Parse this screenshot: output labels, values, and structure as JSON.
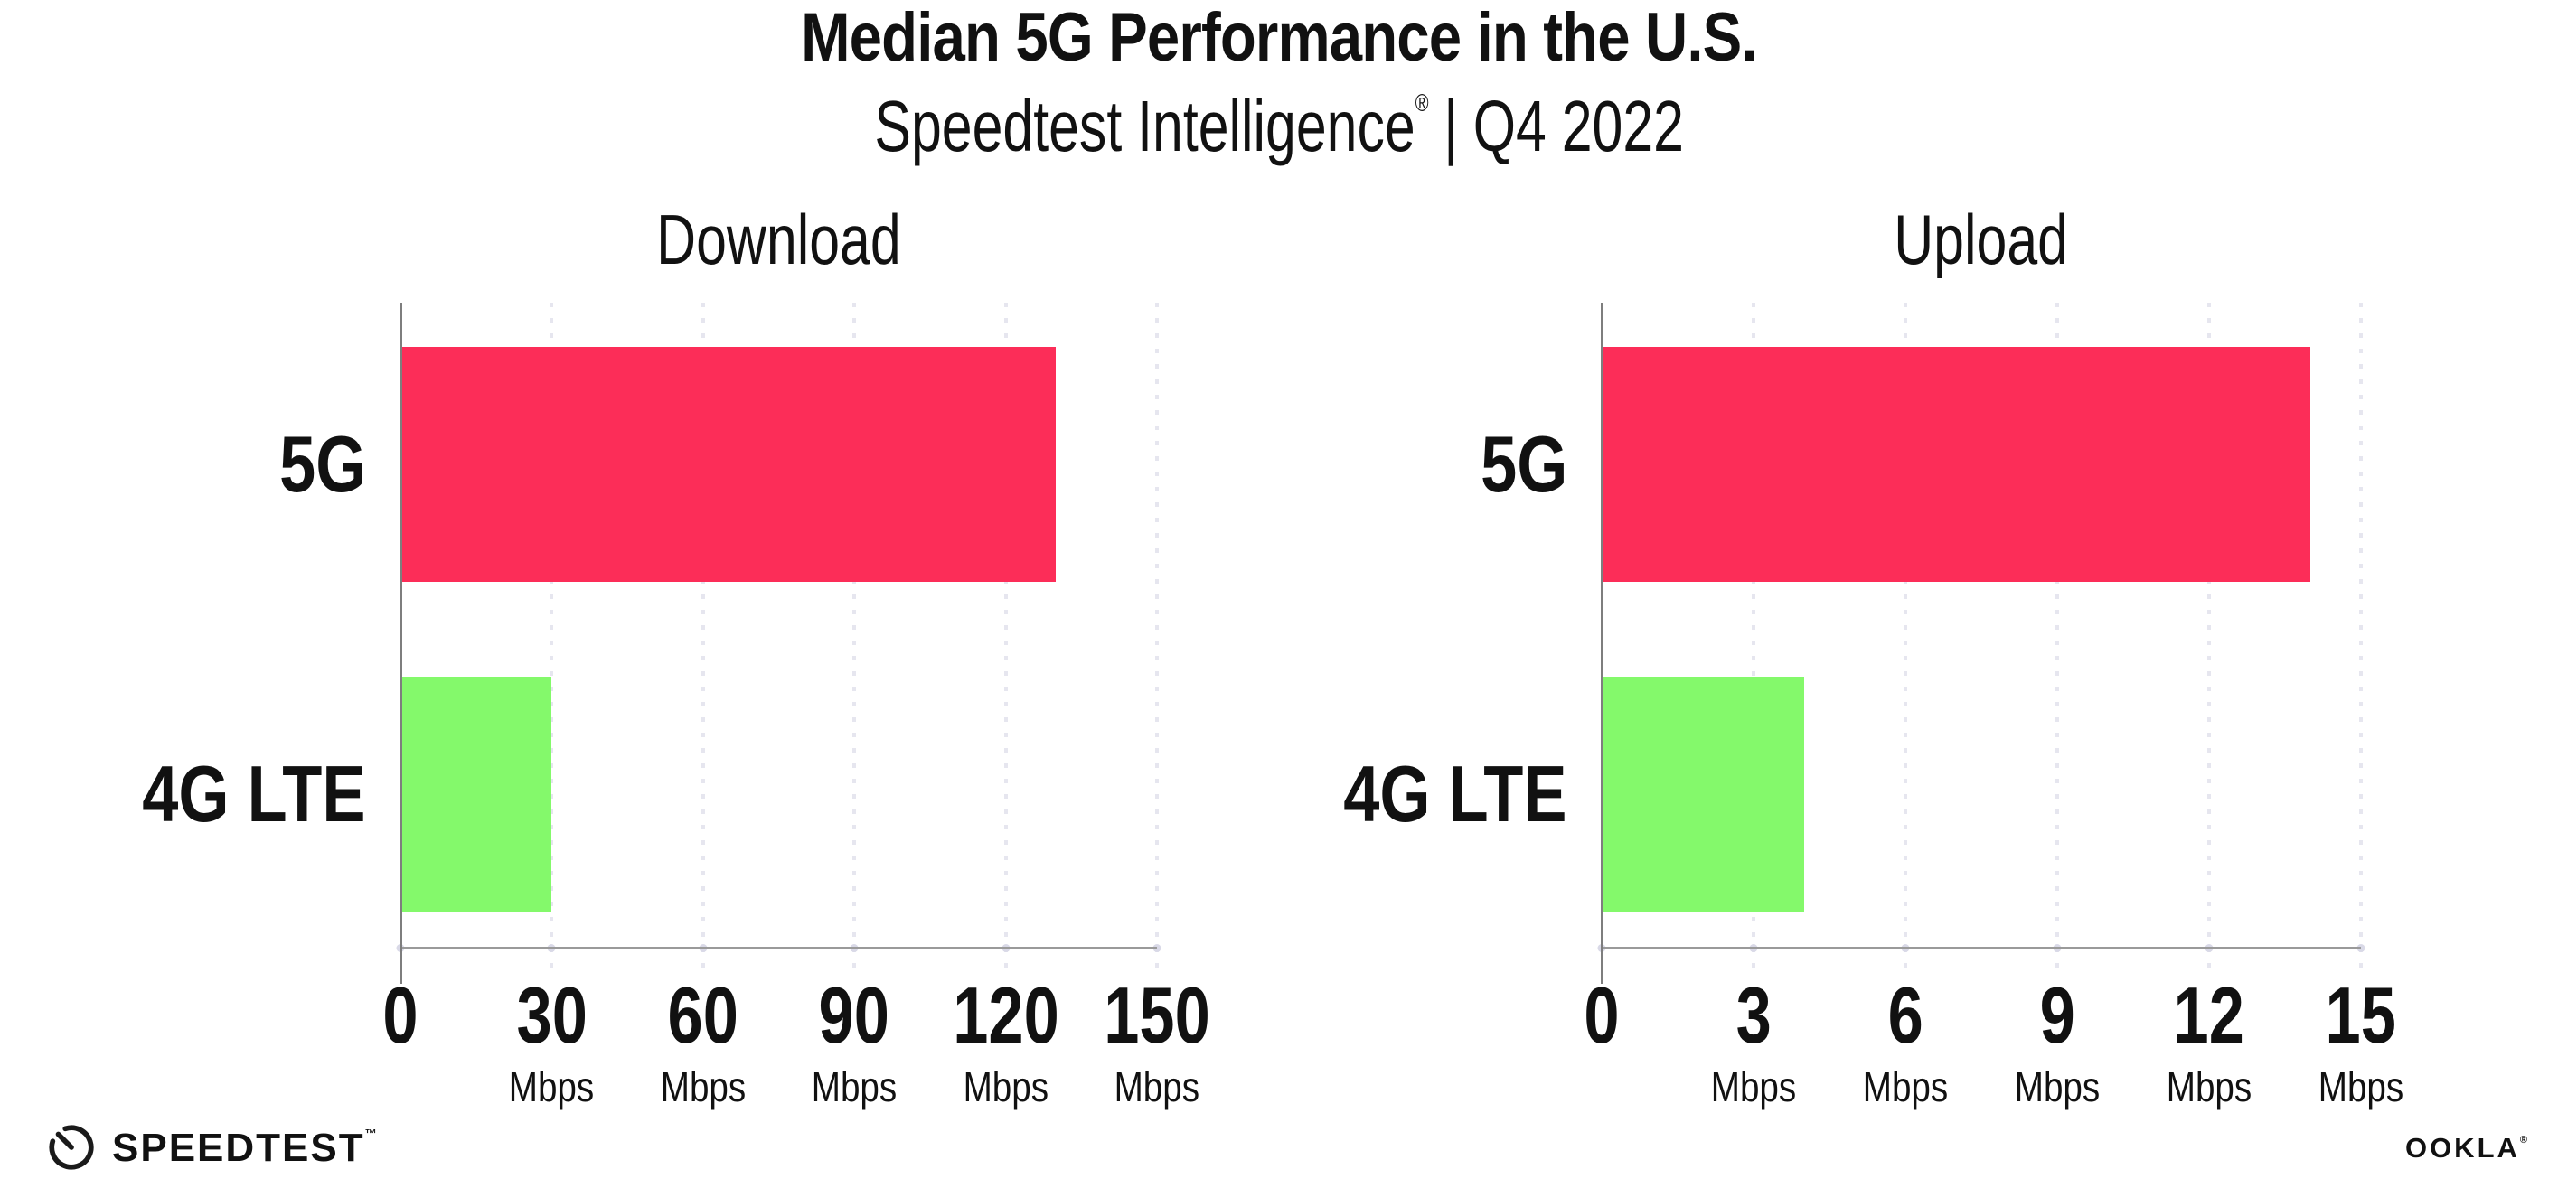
{
  "header": {
    "title": "Median 5G Performance in the U.S.",
    "subtitle": {
      "product": "Speedtest Intelligence",
      "registered_mark": "®",
      "separator": "|",
      "period": "Q4 2022"
    }
  },
  "chart_data": [
    {
      "type": "bar",
      "orientation": "horizontal",
      "title": "Download",
      "categories": [
        "5G",
        "4G LTE"
      ],
      "values": [
        130,
        30
      ],
      "unit": "Mbps",
      "xlim": [
        0,
        150
      ],
      "xticks": [
        0,
        30,
        60,
        90,
        120,
        150
      ],
      "xtick_unit": "Mbps",
      "grid": "dotted-vertical",
      "legend": "none",
      "bar_colors": [
        "#FC2D58",
        "#84F96B"
      ]
    },
    {
      "type": "bar",
      "orientation": "horizontal",
      "title": "Upload",
      "categories": [
        "5G",
        "4G LTE"
      ],
      "values": [
        14,
        4
      ],
      "unit": "Mbps",
      "xlim": [
        0,
        15
      ],
      "xticks": [
        0,
        3,
        6,
        9,
        12,
        15
      ],
      "xtick_unit": "Mbps",
      "grid": "dotted-vertical",
      "legend": "none",
      "bar_colors": [
        "#FC2D58",
        "#84F96B"
      ]
    }
  ],
  "footer": {
    "speedtest_wordmark": "SPEEDTEST",
    "speedtest_mark": "™",
    "speedtest_icon": "speedometer-gauge-icon",
    "ookla_wordmark": "OOKLA",
    "ookla_mark": "®"
  },
  "colors": {
    "bar_5g": "#FC2D58",
    "bar_4g_lte": "#84F96B",
    "gridline": "#E6E6EF",
    "x_axis_line": "#9A9A9A",
    "y_axis_line": "#7E7E7E",
    "tick_dot": "#D9D9E7",
    "text": "#111111",
    "background": "#FFFFFF"
  }
}
